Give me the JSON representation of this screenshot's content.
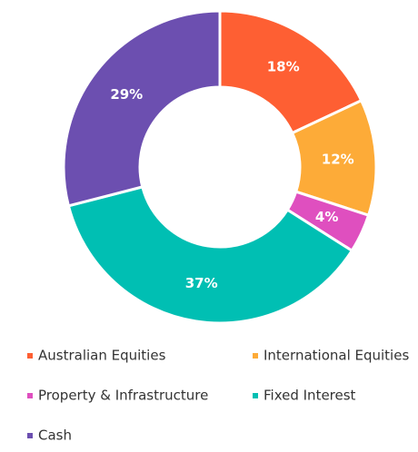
{
  "chart_data": {
    "type": "pie",
    "donut": true,
    "categories": [
      "Australian Equities",
      "International Equities",
      "Property & Infrastructure",
      "Fixed Interest",
      "Cash"
    ],
    "values": [
      18,
      12,
      4,
      37,
      29
    ],
    "value_labels": [
      "18%",
      "12%",
      "4%",
      "37%",
      "29%"
    ],
    "colors": [
      "#fe5f33",
      "#fdab38",
      "#df4fbf",
      "#00bfb3",
      "#6c4fb0"
    ],
    "legend": "bottom"
  }
}
